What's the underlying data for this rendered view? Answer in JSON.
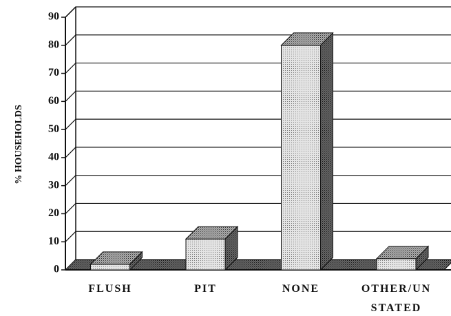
{
  "chart_data": {
    "type": "bar3d",
    "ylabel": "% HOUSEHOLDS",
    "categories": [
      "FLUSH",
      "PIT",
      "NONE",
      "OTHER/UN\nSTATED"
    ],
    "values": [
      2,
      11,
      80,
      4
    ],
    "ylim": [
      0,
      90
    ],
    "yticks": [
      0,
      10,
      20,
      30,
      40,
      50,
      60,
      70,
      80,
      90
    ],
    "grid": true
  }
}
